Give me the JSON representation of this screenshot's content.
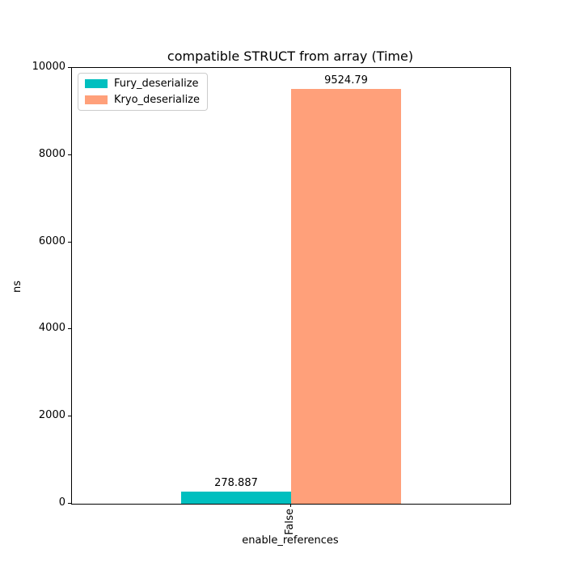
{
  "chart_data": {
    "type": "bar",
    "title": "compatible STRUCT from array (Time)",
    "xlabel": "enable_references",
    "ylabel": "ns",
    "categories": [
      "False"
    ],
    "series": [
      {
        "name": "Fury_deserialize",
        "color": "#00bfbf",
        "values": [
          278.887
        ],
        "value_labels": [
          "278.887"
        ]
      },
      {
        "name": "Kryo_deserialize",
        "color": "#ffa07a",
        "values": [
          9524.79
        ],
        "value_labels": [
          "9524.79"
        ]
      }
    ],
    "ylim": [
      0,
      10000
    ],
    "yticks": [
      "0",
      "2000",
      "4000",
      "6000",
      "8000",
      "10000"
    ],
    "legend_position": "upper left",
    "grid": false,
    "background_color": "#ffffff",
    "axis_color": "#000000"
  }
}
